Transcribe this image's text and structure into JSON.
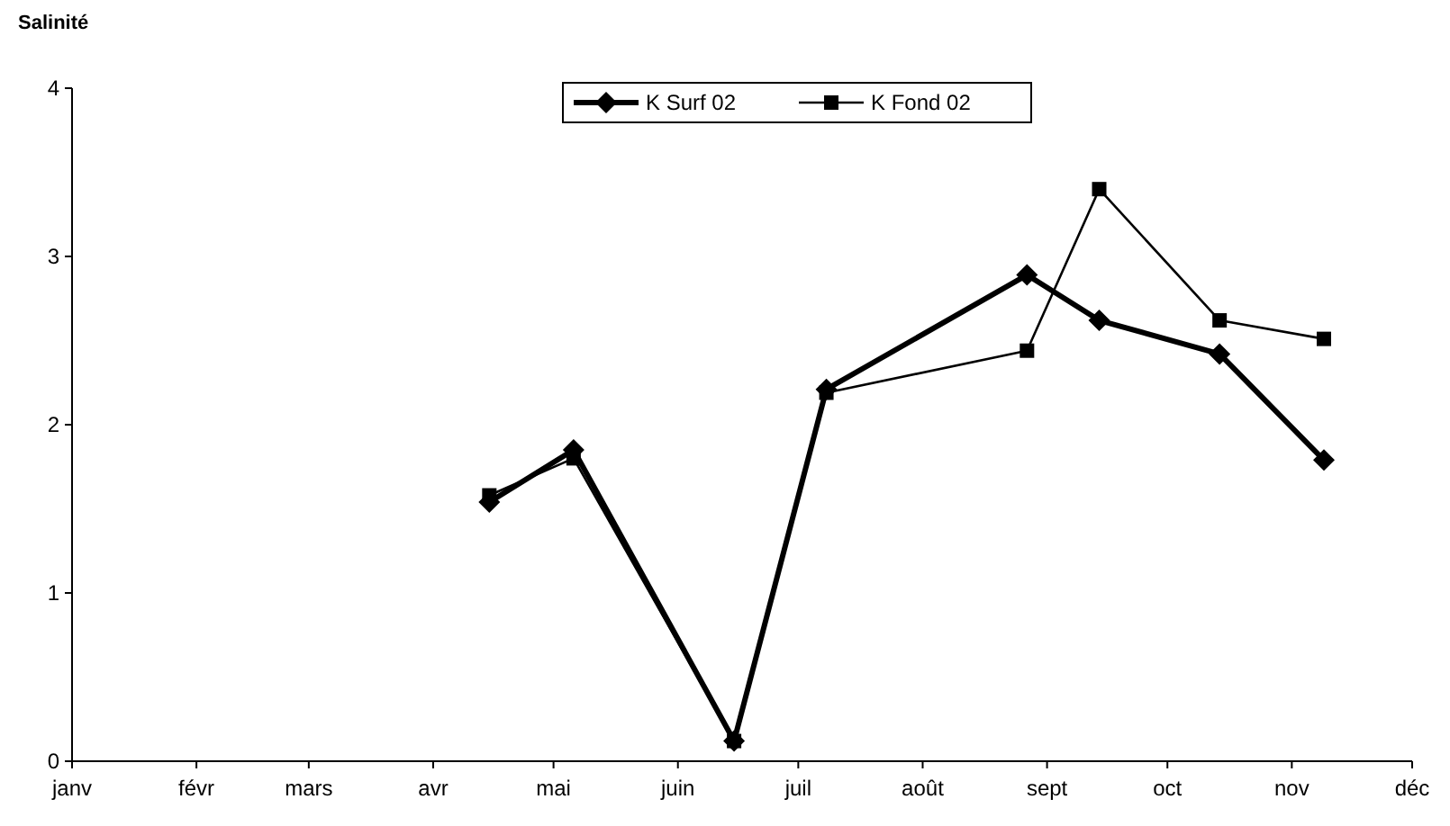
{
  "chart_data": {
    "type": "line",
    "title": "Salinité",
    "x": [
      "--04-15",
      "--05-06",
      "--06-15",
      "--07-08",
      "--08-27",
      "--09-14",
      "--10-14",
      "--11-09"
    ],
    "series": [
      {
        "name": "K Surf 02",
        "color": "#000000",
        "marker": "diamond",
        "values": [
          1.54,
          1.85,
          0.12,
          2.21,
          2.89,
          2.62,
          2.42,
          1.79
        ]
      },
      {
        "name": "K Fond 02",
        "color": "#000000",
        "marker": "square",
        "values": [
          1.58,
          1.8,
          0.12,
          2.19,
          2.44,
          3.4,
          2.62,
          2.51
        ]
      }
    ],
    "xlim": [
      "--01-01",
      "--12-01"
    ],
    "xticks": [
      {
        "value": "--01-01",
        "label": "janv"
      },
      {
        "value": "--02-01",
        "label": "févr"
      },
      {
        "value": "--03-01",
        "label": "mars"
      },
      {
        "value": "--04-01",
        "label": "avr"
      },
      {
        "value": "--05-01",
        "label": "mai"
      },
      {
        "value": "--06-01",
        "label": "juin"
      },
      {
        "value": "--07-01",
        "label": "juil"
      },
      {
        "value": "--08-01",
        "label": "août"
      },
      {
        "value": "--09-01",
        "label": "sept"
      },
      {
        "value": "--10-01",
        "label": "oct"
      },
      {
        "value": "--11-01",
        "label": "nov"
      },
      {
        "value": "--12-01",
        "label": "déc"
      }
    ],
    "ylim": [
      0,
      4
    ],
    "yticks": [
      0,
      1,
      2,
      3,
      4
    ],
    "grid": false,
    "legend": "top"
  }
}
